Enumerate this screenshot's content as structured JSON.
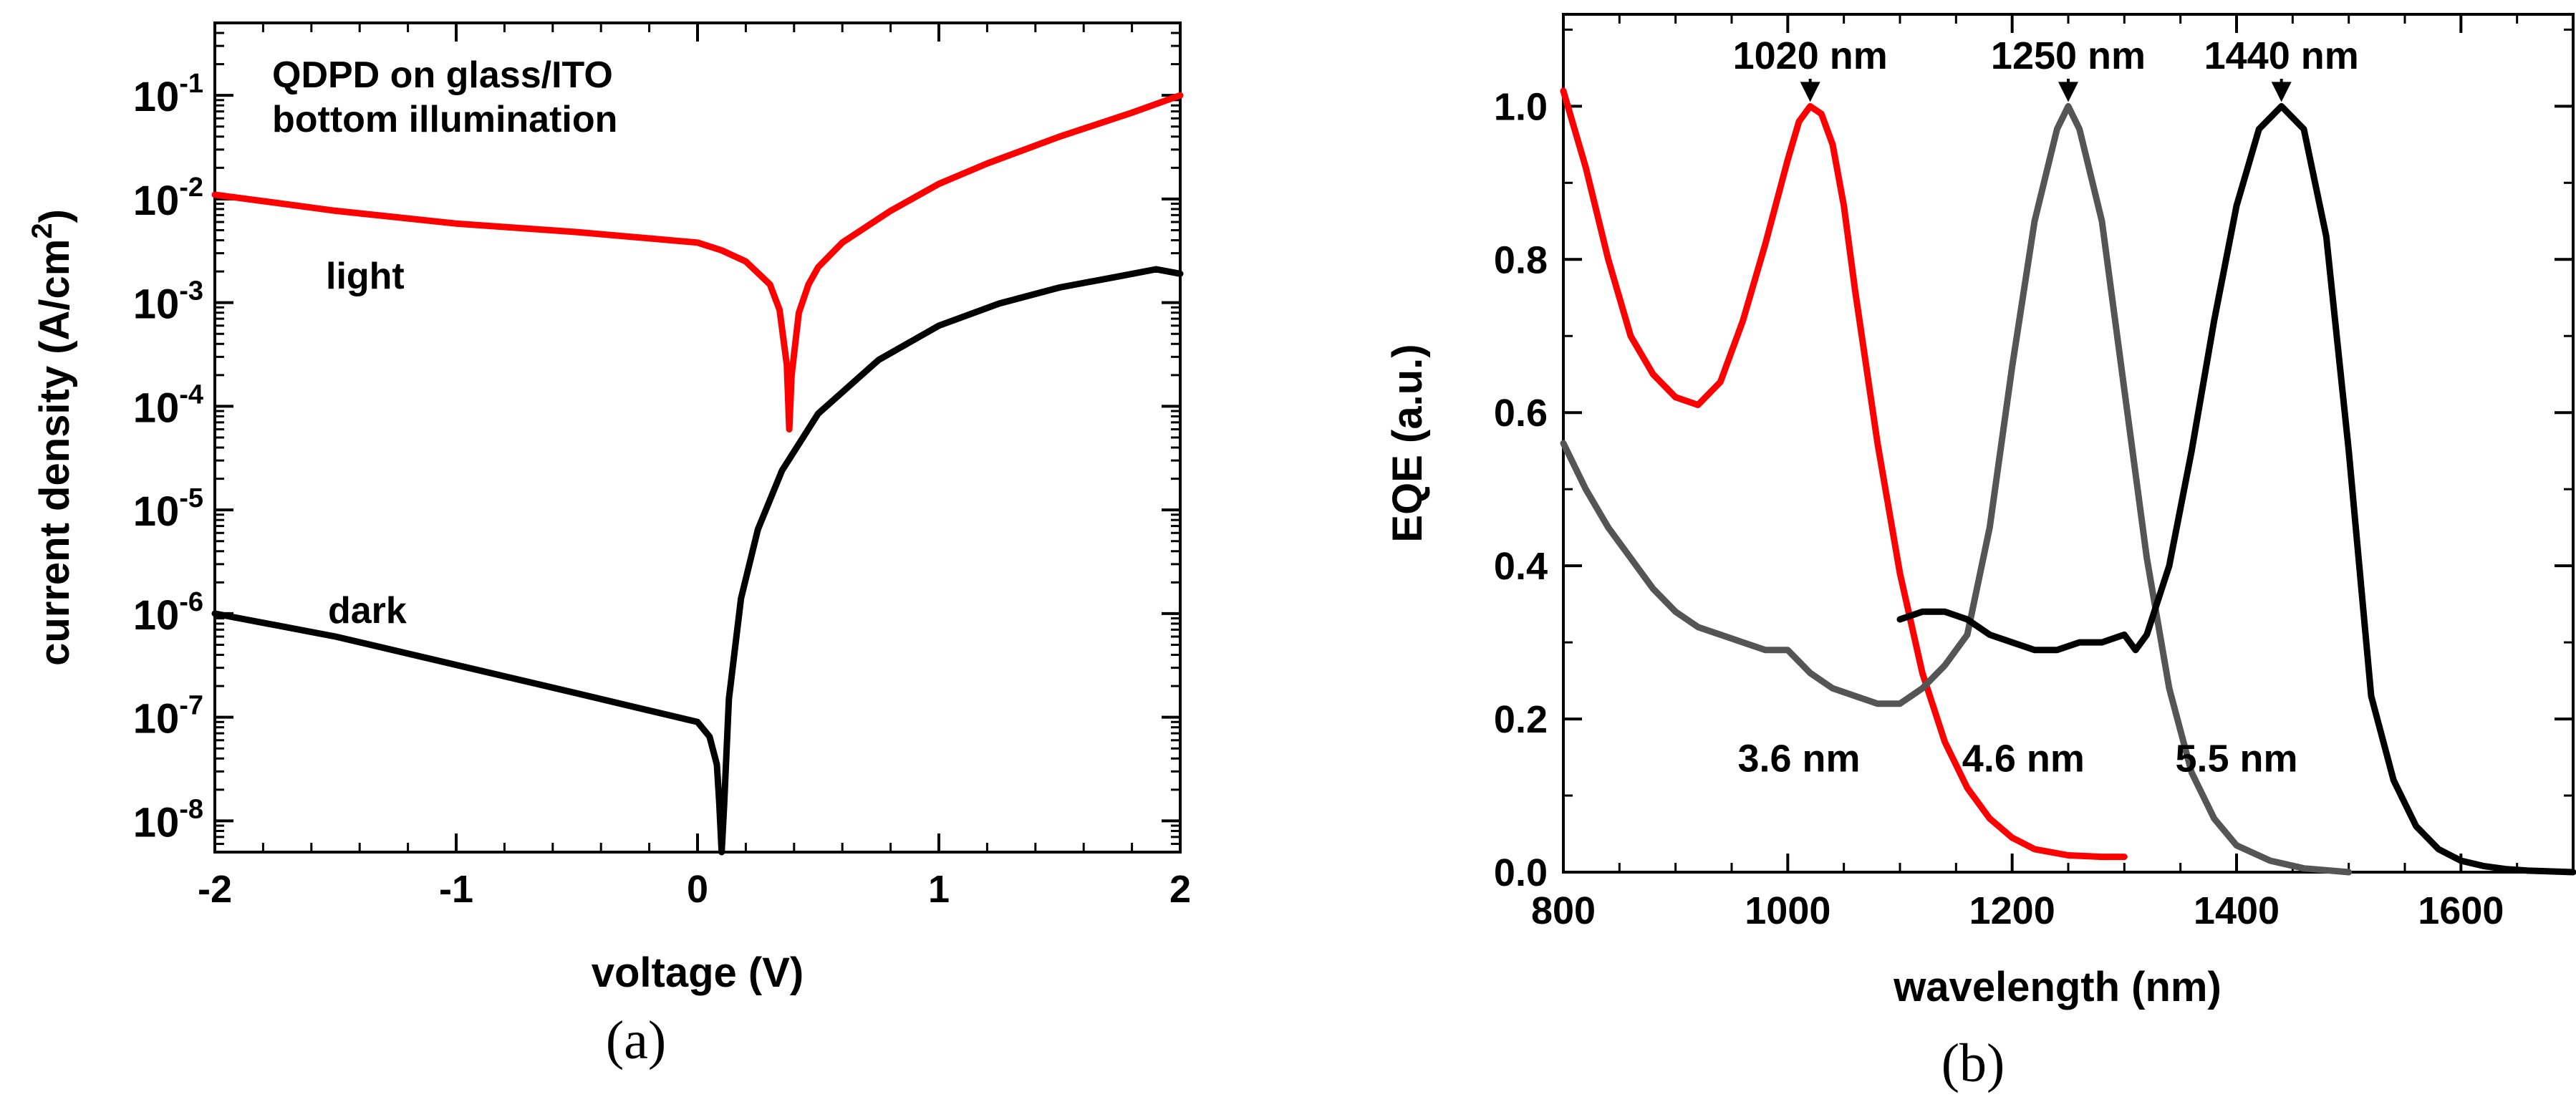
{
  "chart_data": [
    {
      "panel": "(a)",
      "type": "line",
      "xlabel": "voltage (V)",
      "ylabel": "current density (A/cm",
      "ylabel_sup": "2",
      "ylabel_end": ")",
      "yscale": "log",
      "xlim": [
        -2,
        2
      ],
      "ylim": [
        5e-09,
        0.5
      ],
      "xticks": [
        {
          "value": -2,
          "label": "-2"
        },
        {
          "value": -1,
          "label": "-1"
        },
        {
          "value": 0,
          "label": "0"
        },
        {
          "value": 1,
          "label": "1"
        },
        {
          "value": 2,
          "label": "2"
        }
      ],
      "yticks": [
        {
          "value": 1e-08,
          "base": "10",
          "exp": "-8"
        },
        {
          "value": 1e-07,
          "base": "10",
          "exp": "-7"
        },
        {
          "value": 1e-06,
          "base": "10",
          "exp": "-6"
        },
        {
          "value": 1e-05,
          "base": "10",
          "exp": "-5"
        },
        {
          "value": 0.0001,
          "base": "10",
          "exp": "-4"
        },
        {
          "value": 0.001,
          "base": "10",
          "exp": "-3"
        },
        {
          "value": 0.01,
          "base": "10",
          "exp": "-2"
        },
        {
          "value": 0.1,
          "base": "10",
          "exp": "-1"
        }
      ],
      "annotations": {
        "title_line1": "QDPD on glass/ITO",
        "title_line2": "bottom illumination",
        "light": "light",
        "dark": "dark"
      },
      "series": [
        {
          "name": "light",
          "color": "#ff0000",
          "x": [
            -2,
            -1.5,
            -1,
            -0.5,
            0,
            0.1,
            0.2,
            0.3,
            0.34,
            0.37,
            0.38,
            0.39,
            0.42,
            0.46,
            0.5,
            0.6,
            0.8,
            1.0,
            1.2,
            1.5,
            1.8,
            2.0
          ],
          "y": [
            0.011,
            0.0077,
            0.0058,
            0.0048,
            0.0038,
            0.0032,
            0.0025,
            0.0015,
            0.00085,
            0.00025,
            6e-05,
            0.0002,
            0.0008,
            0.0015,
            0.0022,
            0.0038,
            0.0077,
            0.014,
            0.022,
            0.04,
            0.068,
            0.1
          ]
        },
        {
          "name": "dark",
          "color": "#000000",
          "x": [
            -2,
            -1.5,
            -1,
            -0.5,
            0,
            0.05,
            0.08,
            0.09,
            0.1,
            0.11,
            0.13,
            0.18,
            0.25,
            0.35,
            0.5,
            0.75,
            1.0,
            1.25,
            1.5,
            1.75,
            1.9,
            2.0
          ],
          "y": [
            1e-06,
            6e-07,
            3.2e-07,
            1.7e-07,
            9e-08,
            6.5e-08,
            3.5e-08,
            1.5e-08,
            5e-09,
            1.4e-08,
            1.5e-07,
            1.4e-06,
            6.5e-06,
            2.4e-05,
            8.5e-05,
            0.00028,
            0.0006,
            0.00098,
            0.0014,
            0.0018,
            0.0021,
            0.0019
          ]
        }
      ]
    },
    {
      "panel": "(b)",
      "type": "line",
      "xlabel": "wavelength (nm)",
      "ylabel": "EQE (a.u.)",
      "xlim": [
        800,
        1700
      ],
      "ylim": [
        0,
        1.12
      ],
      "xticks": [
        {
          "value": 800,
          "label": "800"
        },
        {
          "value": 1000,
          "label": "1000"
        },
        {
          "value": 1200,
          "label": "1200"
        },
        {
          "value": 1400,
          "label": "1400"
        },
        {
          "value": 1600,
          "label": "1600"
        }
      ],
      "yticks": [
        {
          "value": 0,
          "label": "0.0"
        },
        {
          "value": 0.2,
          "label": "0.2"
        },
        {
          "value": 0.4,
          "label": "0.4"
        },
        {
          "value": 0.6,
          "label": "0.6"
        },
        {
          "value": 0.8,
          "label": "0.8"
        },
        {
          "value": 1.0,
          "label": "1.0"
        }
      ],
      "peak_labels": [
        {
          "label": "1020 nm",
          "x": 1020
        },
        {
          "label": "1250 nm",
          "x": 1250
        },
        {
          "label": "1440 nm",
          "x": 1440
        }
      ],
      "size_labels": [
        {
          "label": "3.6 nm",
          "x": 1010,
          "y": 0.15
        },
        {
          "label": "4.6 nm",
          "x": 1210,
          "y": 0.15
        },
        {
          "label": "5.5 nm",
          "x": 1400,
          "y": 0.15
        }
      ],
      "series": [
        {
          "name": "3.6 nm",
          "color": "#ff0000",
          "x": [
            800,
            820,
            840,
            860,
            880,
            900,
            920,
            940,
            960,
            980,
            1000,
            1010,
            1020,
            1030,
            1040,
            1050,
            1060,
            1080,
            1100,
            1120,
            1140,
            1160,
            1180,
            1200,
            1220,
            1250,
            1280,
            1300
          ],
          "y": [
            1.02,
            0.92,
            0.8,
            0.7,
            0.65,
            0.62,
            0.61,
            0.64,
            0.72,
            0.82,
            0.93,
            0.98,
            1.0,
            0.99,
            0.95,
            0.87,
            0.76,
            0.56,
            0.39,
            0.26,
            0.17,
            0.11,
            0.07,
            0.045,
            0.03,
            0.022,
            0.02,
            0.02
          ]
        },
        {
          "name": "4.6 nm",
          "color": "#555555",
          "x": [
            800,
            820,
            840,
            860,
            880,
            900,
            920,
            940,
            960,
            980,
            1000,
            1020,
            1040,
            1060,
            1080,
            1100,
            1120,
            1140,
            1160,
            1180,
            1200,
            1220,
            1240,
            1250,
            1260,
            1280,
            1300,
            1320,
            1340,
            1360,
            1380,
            1400,
            1430,
            1460,
            1500
          ],
          "y": [
            0.56,
            0.5,
            0.45,
            0.41,
            0.37,
            0.34,
            0.32,
            0.31,
            0.3,
            0.29,
            0.29,
            0.26,
            0.24,
            0.23,
            0.22,
            0.22,
            0.24,
            0.27,
            0.31,
            0.45,
            0.66,
            0.85,
            0.97,
            1.0,
            0.97,
            0.85,
            0.63,
            0.41,
            0.24,
            0.13,
            0.07,
            0.035,
            0.015,
            0.005,
            0.0
          ]
        },
        {
          "name": "5.5 nm",
          "color": "#000000",
          "x": [
            1100,
            1120,
            1140,
            1160,
            1180,
            1200,
            1220,
            1240,
            1260,
            1280,
            1300,
            1310,
            1320,
            1340,
            1360,
            1380,
            1400,
            1420,
            1440,
            1460,
            1480,
            1500,
            1520,
            1540,
            1560,
            1580,
            1600,
            1620,
            1640,
            1660,
            1700
          ],
          "y": [
            0.33,
            0.34,
            0.34,
            0.33,
            0.31,
            0.3,
            0.29,
            0.29,
            0.3,
            0.3,
            0.31,
            0.29,
            0.31,
            0.4,
            0.55,
            0.72,
            0.87,
            0.97,
            1.0,
            0.97,
            0.83,
            0.55,
            0.23,
            0.12,
            0.06,
            0.03,
            0.015,
            0.008,
            0.004,
            0.002,
            0.0
          ]
        }
      ]
    }
  ]
}
